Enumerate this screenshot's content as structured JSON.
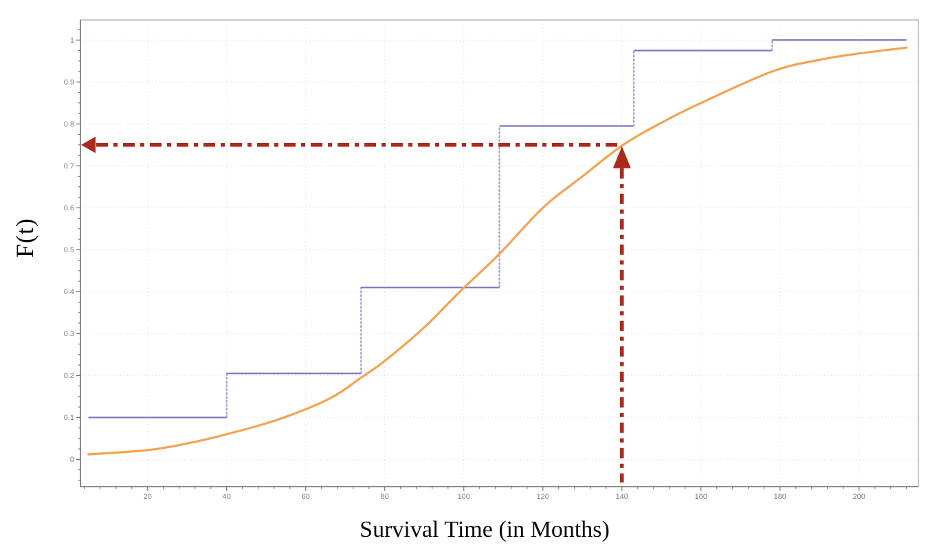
{
  "figure": {
    "background": "#ffffff"
  },
  "chart_data": {
    "type": "line",
    "title": "",
    "xlabel": "Survival Time (in Months)",
    "ylabel": "F(t)",
    "x_axis": {
      "range": [
        3,
        215
      ],
      "major_ticks": [
        20,
        40,
        60,
        80,
        100,
        120,
        140,
        160,
        180,
        200
      ],
      "tick_labels": [
        "20",
        "40",
        "60",
        "80",
        "100",
        "120",
        "140",
        "160",
        "180",
        "200"
      ],
      "minor_step": 4
    },
    "y_axis": {
      "range": [
        -0.065,
        1.048
      ],
      "major_ticks": [
        0,
        0.1,
        0.2,
        0.3,
        0.4,
        0.5,
        0.6,
        0.7,
        0.8,
        0.9,
        1
      ],
      "tick_labels": [
        "0",
        "0.1",
        "0.2",
        "0.3",
        "0.4",
        "0.5",
        "0.6",
        "0.7",
        "0.8",
        "0.9",
        "1"
      ],
      "minor_step": 0.025
    },
    "grid": {
      "show": true,
      "style": "dotted",
      "at": "major-ticks"
    },
    "legend": {
      "show": false
    },
    "colors": {
      "grid": "#e2e2e2",
      "frame": "#aaaaaa",
      "axis": "#6f6f6f",
      "tick": "#6f6f6f",
      "tick_label": "#7c7c86",
      "step_solid": "#8474bc",
      "step_dotted": "#a89bd6",
      "fitted_curve": "#f4a351",
      "annotation_red": "#ac2a1c"
    },
    "series": [
      {
        "name": "empirical-cdf-step",
        "style": "step",
        "color": "#8474bc",
        "jump_color": "#a89bd6",
        "steps": [
          {
            "t1": 5,
            "t2": 40,
            "F": 0.1
          },
          {
            "t1": 40,
            "t2": 74,
            "F": 0.205
          },
          {
            "t1": 74,
            "t2": 109,
            "F": 0.41
          },
          {
            "t1": 109,
            "t2": 143,
            "F": 0.795
          },
          {
            "t1": 143,
            "t2": 178,
            "F": 0.975
          },
          {
            "t1": 178,
            "t2": 212,
            "F": 1.0
          }
        ]
      },
      {
        "name": "fitted-cdf-curve",
        "style": "smooth",
        "color": "#f4a351",
        "points": [
          [
            5,
            0.012
          ],
          [
            20,
            0.022
          ],
          [
            30,
            0.038
          ],
          [
            40,
            0.06
          ],
          [
            53,
            0.095
          ],
          [
            66,
            0.145
          ],
          [
            74,
            0.195
          ],
          [
            80,
            0.235
          ],
          [
            90,
            0.315
          ],
          [
            99,
            0.4
          ],
          [
            109,
            0.49
          ],
          [
            120,
            0.6
          ],
          [
            130,
            0.675
          ],
          [
            140,
            0.748
          ],
          [
            150,
            0.803
          ],
          [
            160,
            0.85
          ],
          [
            178,
            0.925
          ],
          [
            190,
            0.953
          ],
          [
            200,
            0.968
          ],
          [
            212,
            0.982
          ]
        ]
      }
    ],
    "annotation": {
      "type": "dash-dot-guides",
      "x": 140,
      "y": 0.75,
      "color": "#ac2a1c",
      "description": "horizontal arrow to y-axis at F(t)=0.75 and vertical arrow up from t=140 to fitted curve"
    }
  }
}
